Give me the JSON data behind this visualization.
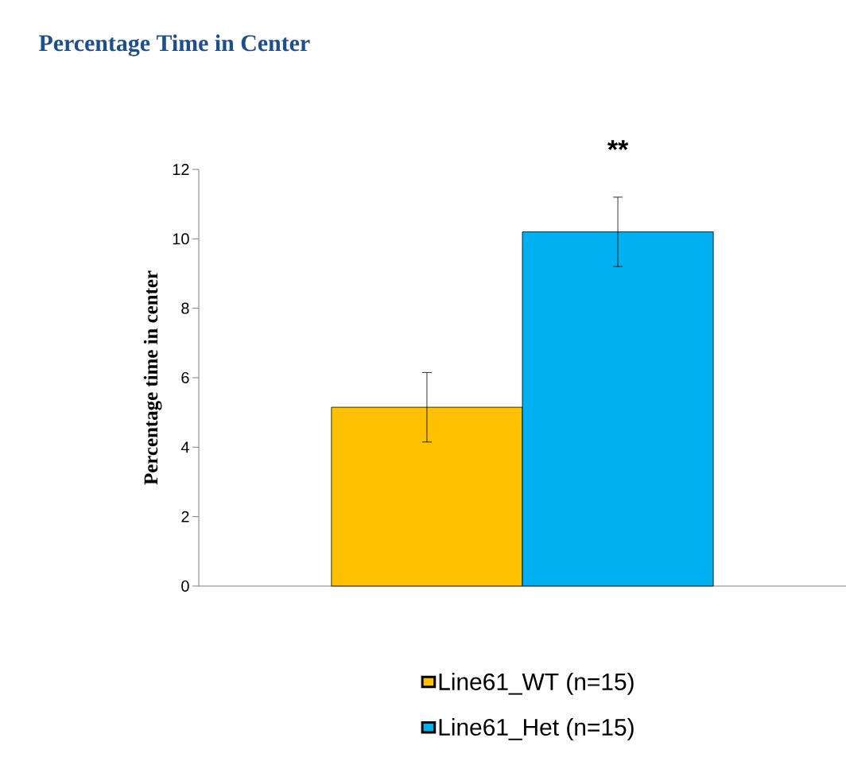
{
  "chart_data": {
    "type": "bar",
    "title": "Percentage Time in Center",
    "ylabel": "Percentage time in center",
    "categories": [
      null
    ],
    "series": [
      {
        "name": "Line61_WT (n=15)",
        "color": "#ffc000",
        "values": [
          5.15
        ],
        "errors": [
          1.0
        ]
      },
      {
        "name": "Line61_Het (n=15)",
        "color": "#00b0f0",
        "values": [
          10.2
        ],
        "errors": [
          1.0
        ]
      }
    ],
    "ylim": [
      0,
      12
    ],
    "yticks": [
      0,
      2,
      4,
      6,
      8,
      10,
      12
    ],
    "legend": "bottom",
    "annotations": [
      "**"
    ]
  }
}
